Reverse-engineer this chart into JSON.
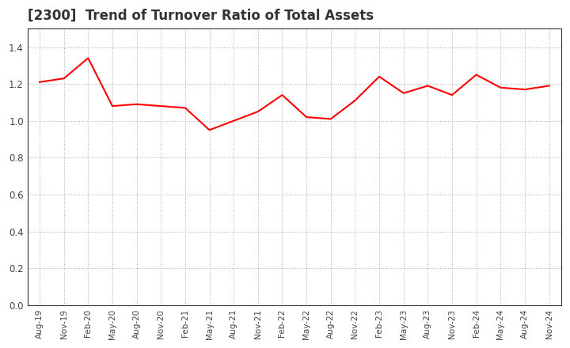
{
  "title": "[2300]  Trend of Turnover Ratio of Total Assets",
  "line_color": "#FF0000",
  "line_width": 1.5,
  "background_color": "#FFFFFF",
  "plot_bg_color": "#FFFFFF",
  "grid_color": "#999999",
  "title_color": "#333333",
  "title_fontsize": 12,
  "ylim": [
    0.0,
    1.5
  ],
  "yticks": [
    0.0,
    0.2,
    0.4,
    0.6,
    0.8,
    1.0,
    1.2,
    1.4
  ],
  "labels": [
    "Aug-19",
    "Nov-19",
    "Feb-20",
    "May-20",
    "Aug-20",
    "Nov-20",
    "Feb-21",
    "May-21",
    "Aug-21",
    "Nov-21",
    "Feb-22",
    "May-22",
    "Aug-22",
    "Nov-22",
    "Feb-23",
    "May-23",
    "Aug-23",
    "Nov-23",
    "Feb-24",
    "May-24",
    "Aug-24",
    "Nov-24"
  ],
  "values": [
    1.21,
    1.23,
    1.34,
    1.08,
    1.09,
    1.08,
    1.07,
    0.95,
    1.0,
    1.05,
    1.14,
    1.02,
    1.01,
    1.11,
    1.24,
    1.15,
    1.19,
    1.14,
    1.25,
    1.18,
    1.17,
    1.19
  ]
}
